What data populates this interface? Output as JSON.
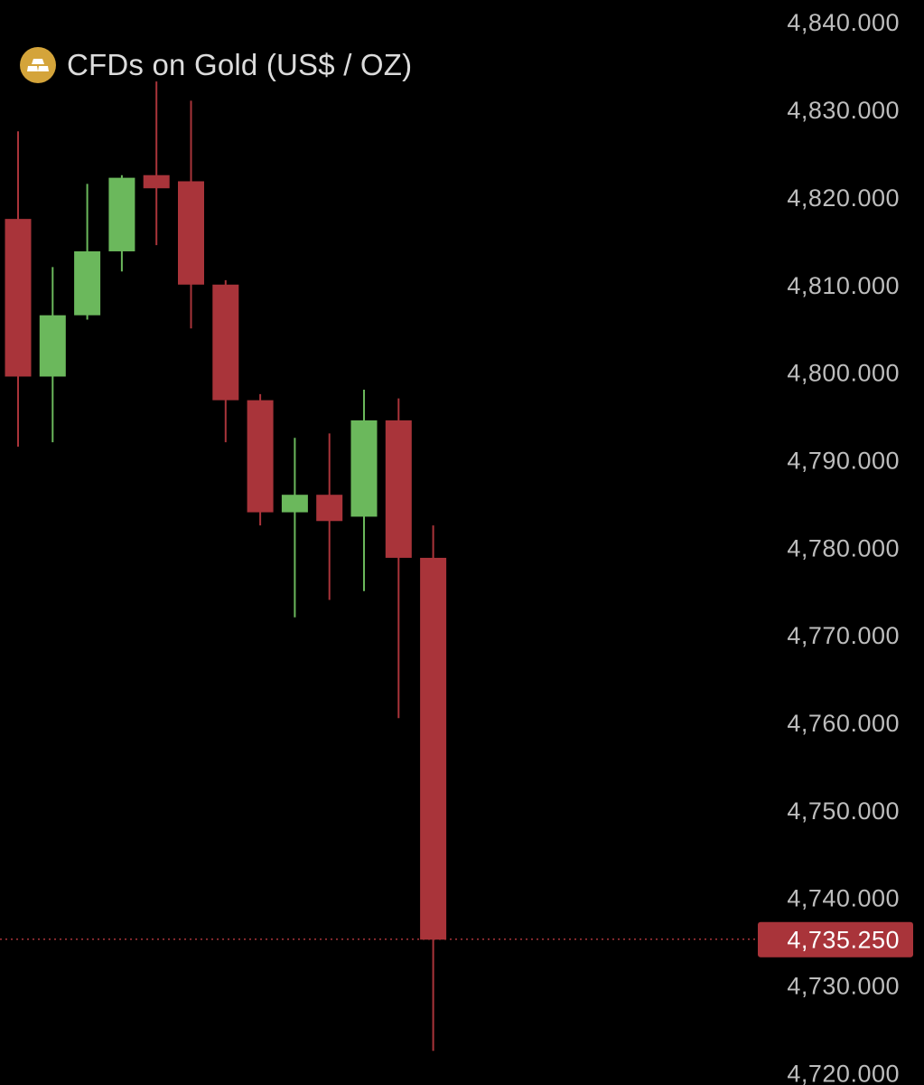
{
  "header": {
    "title": "CFDs on Gold (US$ / OZ)",
    "icon": "gold-bars-icon",
    "icon_color": "#d4a43a"
  },
  "colors": {
    "background": "#000000",
    "up": "#6bb85c",
    "down": "#a9343a",
    "price_line": "#a9343a",
    "axis_text": "#bdbdbd"
  },
  "chart_data": {
    "type": "candlestick",
    "title": "CFDs on Gold (US$ / OZ)",
    "y_axis_side": "right",
    "y_ticks": [
      "4,840.000",
      "4,830.000",
      "4,820.000",
      "4,810.000",
      "4,800.000",
      "4,790.000",
      "4,780.000",
      "4,770.000",
      "4,760.000",
      "4,750.000",
      "4,740.000",
      "4,730.000",
      "4,720.000"
    ],
    "ylim": [
      4718.6,
      4842.5
    ],
    "current_price": 4735.25,
    "current_price_label": "4,735.250",
    "candles": [
      {
        "open": 4817.5,
        "high": 4827.5,
        "low": 4791.5,
        "close": 4799.5
      },
      {
        "open": 4799.5,
        "high": 4812.0,
        "low": 4792.0,
        "close": 4806.5
      },
      {
        "open": 4806.5,
        "high": 4821.5,
        "low": 4806.0,
        "close": 4813.8
      },
      {
        "open": 4813.8,
        "high": 4822.5,
        "low": 4811.5,
        "close": 4822.2
      },
      {
        "open": 4822.5,
        "high": 4833.2,
        "low": 4814.5,
        "close": 4821.0
      },
      {
        "open": 4821.8,
        "high": 4831.0,
        "low": 4805.0,
        "close": 4810.0
      },
      {
        "open": 4810.0,
        "high": 4810.5,
        "low": 4792.0,
        "close": 4796.8
      },
      {
        "open": 4796.8,
        "high": 4797.5,
        "low": 4782.5,
        "close": 4784.0
      },
      {
        "open": 4784.0,
        "high": 4792.5,
        "low": 4772.0,
        "close": 4786.0
      },
      {
        "open": 4786.0,
        "high": 4793.0,
        "low": 4774.0,
        "close": 4783.0
      },
      {
        "open": 4783.5,
        "high": 4798.0,
        "low": 4775.0,
        "close": 4794.5
      },
      {
        "open": 4794.5,
        "high": 4797.0,
        "low": 4760.5,
        "close": 4778.8
      },
      {
        "open": 4778.8,
        "high": 4782.5,
        "low": 4722.5,
        "close": 4735.2
      }
    ]
  }
}
